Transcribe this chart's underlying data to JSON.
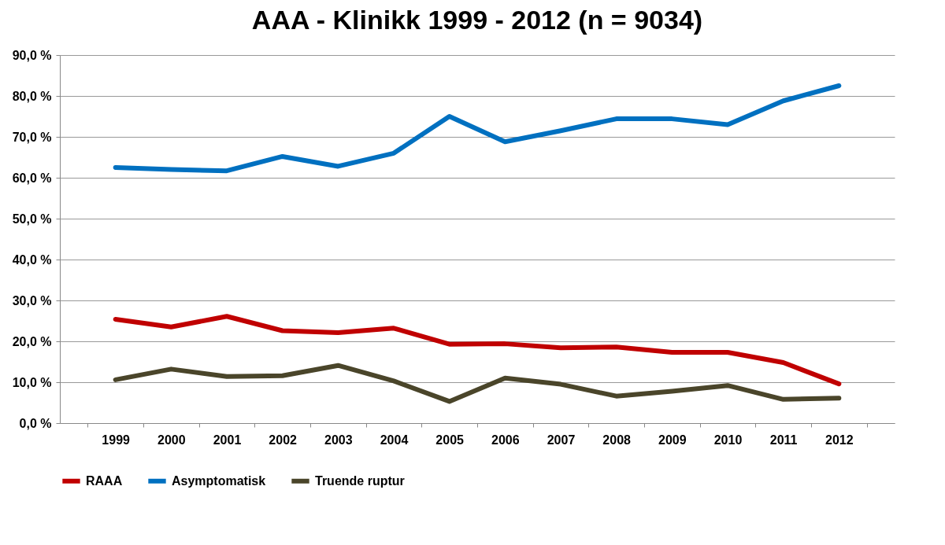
{
  "chart_data": {
    "type": "line",
    "title": "AAA - Klinikk 1999 - 2012 (n = 9034)",
    "categories": [
      "1999",
      "2000",
      "2001",
      "2002",
      "2003",
      "2004",
      "2005",
      "2006",
      "2007",
      "2008",
      "2009",
      "2010",
      "2011",
      "2012"
    ],
    "series": [
      {
        "name": "RAAA",
        "color": "#c00000",
        "values": [
          25.4,
          23.5,
          26.1,
          22.6,
          22.1,
          23.2,
          19.3,
          19.4,
          18.4,
          18.6,
          17.3,
          17.3,
          14.8,
          9.6
        ]
      },
      {
        "name": "Asymptomatisk",
        "color": "#0070c0",
        "values": [
          62.5,
          62.0,
          61.7,
          65.2,
          62.8,
          66.0,
          75.0,
          68.8,
          71.5,
          74.4,
          74.4,
          73.0,
          78.8,
          82.5
        ]
      },
      {
        "name": "Truende ruptur",
        "color": "#4a452a",
        "values": [
          10.6,
          13.2,
          11.4,
          11.6,
          14.1,
          10.3,
          5.3,
          11.0,
          9.5,
          6.6,
          7.8,
          9.2,
          5.8,
          6.1
        ]
      }
    ],
    "ylim": [
      0,
      90
    ],
    "yticks": [
      {
        "value": 0,
        "label": "0,0 %"
      },
      {
        "value": 10,
        "label": "10,0 %"
      },
      {
        "value": 20,
        "label": "20,0 %"
      },
      {
        "value": 30,
        "label": "30,0 %"
      },
      {
        "value": 40,
        "label": "40,0 %"
      },
      {
        "value": 50,
        "label": "50,0 %"
      },
      {
        "value": 60,
        "label": "60,0 %"
      },
      {
        "value": 70,
        "label": "70,0 %"
      },
      {
        "value": 80,
        "label": "80,0 %"
      },
      {
        "value": 90,
        "label": "90,0 %"
      }
    ],
    "grid": "y",
    "legend": "bottom",
    "marker": "none",
    "line_style": "solid"
  }
}
